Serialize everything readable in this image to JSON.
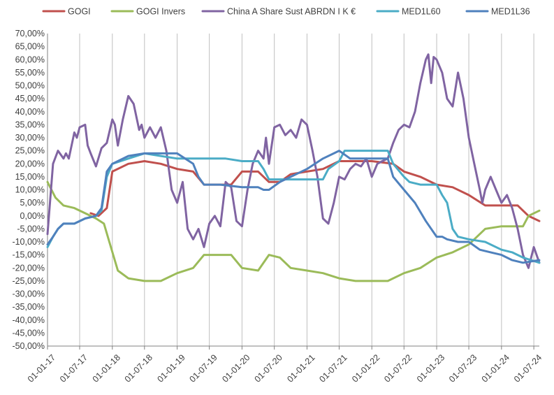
{
  "chart_data": {
    "type": "line",
    "title": "",
    "xlabel": "",
    "ylabel": "",
    "ylim": [
      -50,
      70
    ],
    "y_ticks": [
      70,
      65,
      60,
      55,
      50,
      45,
      40,
      35,
      30,
      25,
      20,
      15,
      10,
      5,
      0,
      -5,
      -10,
      -15,
      -20,
      -25,
      -30,
      -35,
      -40,
      -45,
      -50
    ],
    "y_tick_labels": [
      "70,00%",
      "65,00%",
      "60,00%",
      "55,00%",
      "50,00%",
      "45,00%",
      "40,00%",
      "35,00%",
      "30,00%",
      "25,00%",
      "20,00%",
      "15,00%",
      "10,00%",
      "5,00%",
      "0,00%",
      "-5,00%",
      "-10,00%",
      "-15,00%",
      "-20,00%",
      "-25,00%",
      "-30,00%",
      "-35,00%",
      "-40,00%",
      "-45,00%",
      "-50,00%"
    ],
    "x_range": [
      "2017-01-01",
      "2024-08-01"
    ],
    "x_tick_dates": [
      "2017-01-01",
      "2017-07-01",
      "2018-01-01",
      "2018-07-01",
      "2019-01-01",
      "2019-07-01",
      "2020-01-01",
      "2020-07-01",
      "2021-01-01",
      "2021-07-01",
      "2022-01-01",
      "2022-07-01",
      "2023-01-01",
      "2023-07-01",
      "2024-01-01",
      "2024-07-01"
    ],
    "x_tick_labels": [
      "01-01-17",
      "01-07-17",
      "01-01-18",
      "01-07-18",
      "01-01-19",
      "01-07-19",
      "01-01-20",
      "01-07-20",
      "01-01-21",
      "01-07-21",
      "01-01-22",
      "01-07-22",
      "01-01-23",
      "01-07-23",
      "01-01-24",
      "01-07-24"
    ],
    "grid": "vertical",
    "legend_position": "top",
    "series": [
      {
        "name": "GOGI",
        "color": "#C0504D",
        "points": [
          [
            "2017-09-01",
            1
          ],
          [
            "2017-10-15",
            0
          ],
          [
            "2017-12-01",
            3
          ],
          [
            "2018-01-01",
            17
          ],
          [
            "2018-04-01",
            20
          ],
          [
            "2018-07-01",
            21
          ],
          [
            "2018-10-01",
            20
          ],
          [
            "2019-01-01",
            18
          ],
          [
            "2019-04-01",
            17
          ],
          [
            "2019-06-01",
            12
          ],
          [
            "2019-08-01",
            12
          ],
          [
            "2019-11-01",
            12
          ],
          [
            "2020-01-01",
            17
          ],
          [
            "2020-04-01",
            17
          ],
          [
            "2020-06-01",
            13
          ],
          [
            "2020-08-01",
            13
          ],
          [
            "2020-10-01",
            16
          ],
          [
            "2021-01-01",
            17
          ],
          [
            "2021-04-01",
            18
          ],
          [
            "2021-07-01",
            21
          ],
          [
            "2021-10-01",
            21
          ],
          [
            "2022-01-01",
            21
          ],
          [
            "2022-05-01",
            20
          ],
          [
            "2022-07-01",
            17
          ],
          [
            "2022-10-01",
            15
          ],
          [
            "2023-01-01",
            12
          ],
          [
            "2023-04-01",
            11
          ],
          [
            "2023-07-01",
            8
          ],
          [
            "2023-10-01",
            4
          ],
          [
            "2024-01-01",
            4
          ],
          [
            "2024-04-01",
            4
          ],
          [
            "2024-06-01",
            0
          ],
          [
            "2024-08-01",
            -2
          ]
        ]
      },
      {
        "name": "GOGI Invers",
        "color": "#9BBB59",
        "points": [
          [
            "2017-01-01",
            13
          ],
          [
            "2017-02-15",
            7
          ],
          [
            "2017-04-01",
            4
          ],
          [
            "2017-06-01",
            3
          ],
          [
            "2017-08-01",
            1
          ],
          [
            "2017-10-01",
            -1
          ],
          [
            "2017-11-15",
            -3
          ],
          [
            "2017-12-15",
            -10
          ],
          [
            "2018-02-01",
            -21
          ],
          [
            "2018-04-01",
            -24
          ],
          [
            "2018-07-01",
            -25
          ],
          [
            "2018-10-01",
            -25
          ],
          [
            "2019-01-01",
            -22
          ],
          [
            "2019-04-01",
            -20
          ],
          [
            "2019-06-01",
            -15
          ],
          [
            "2019-08-01",
            -15
          ],
          [
            "2019-11-01",
            -15
          ],
          [
            "2020-01-01",
            -20
          ],
          [
            "2020-04-01",
            -21
          ],
          [
            "2020-06-01",
            -15
          ],
          [
            "2020-08-01",
            -16
          ],
          [
            "2020-10-01",
            -20
          ],
          [
            "2021-01-01",
            -21
          ],
          [
            "2021-04-01",
            -22
          ],
          [
            "2021-07-01",
            -24
          ],
          [
            "2021-10-01",
            -25
          ],
          [
            "2022-01-01",
            -25
          ],
          [
            "2022-04-01",
            -25
          ],
          [
            "2022-07-01",
            -22
          ],
          [
            "2022-10-01",
            -20
          ],
          [
            "2023-01-01",
            -16
          ],
          [
            "2023-04-01",
            -14
          ],
          [
            "2023-07-01",
            -11
          ],
          [
            "2023-10-01",
            -5
          ],
          [
            "2024-01-01",
            -4
          ],
          [
            "2024-05-01",
            -4
          ],
          [
            "2024-06-01",
            0
          ],
          [
            "2024-08-01",
            2
          ]
        ]
      },
      {
        "name": "China A Share Sust ABRDN I K €",
        "color": "#8064A2",
        "points": [
          [
            "2017-01-01",
            -7
          ],
          [
            "2017-02-01",
            20
          ],
          [
            "2017-03-01",
            25
          ],
          [
            "2017-04-01",
            22
          ],
          [
            "2017-04-15",
            24
          ],
          [
            "2017-05-01",
            22
          ],
          [
            "2017-06-01",
            32
          ],
          [
            "2017-06-15",
            30
          ],
          [
            "2017-07-01",
            34
          ],
          [
            "2017-08-01",
            35
          ],
          [
            "2017-08-15",
            27
          ],
          [
            "2017-09-01",
            24
          ],
          [
            "2017-10-01",
            19
          ],
          [
            "2017-11-01",
            26
          ],
          [
            "2017-12-01",
            28
          ],
          [
            "2018-01-01",
            37
          ],
          [
            "2018-01-15",
            35
          ],
          [
            "2018-02-01",
            27
          ],
          [
            "2018-03-01",
            37
          ],
          [
            "2018-04-01",
            46
          ],
          [
            "2018-05-01",
            43
          ],
          [
            "2018-06-01",
            33
          ],
          [
            "2018-06-15",
            35
          ],
          [
            "2018-07-01",
            30
          ],
          [
            "2018-08-01",
            34
          ],
          [
            "2018-09-01",
            30
          ],
          [
            "2018-10-01",
            34
          ],
          [
            "2018-11-01",
            25
          ],
          [
            "2018-12-01",
            10
          ],
          [
            "2019-01-01",
            5
          ],
          [
            "2019-02-01",
            13
          ],
          [
            "2019-03-01",
            -5
          ],
          [
            "2019-04-01",
            -9
          ],
          [
            "2019-05-01",
            -5
          ],
          [
            "2019-06-01",
            -12
          ],
          [
            "2019-07-01",
            -3
          ],
          [
            "2019-08-01",
            0
          ],
          [
            "2019-09-01",
            -4
          ],
          [
            "2019-10-01",
            13
          ],
          [
            "2019-11-01",
            11
          ],
          [
            "2019-12-01",
            -2
          ],
          [
            "2020-01-01",
            -4
          ],
          [
            "2020-02-01",
            10
          ],
          [
            "2020-03-01",
            20
          ],
          [
            "2020-04-01",
            25
          ],
          [
            "2020-05-01",
            22
          ],
          [
            "2020-05-15",
            30
          ],
          [
            "2020-06-01",
            20
          ],
          [
            "2020-07-01",
            34
          ],
          [
            "2020-08-01",
            35
          ],
          [
            "2020-09-01",
            31
          ],
          [
            "2020-10-01",
            33
          ],
          [
            "2020-11-01",
            30
          ],
          [
            "2020-12-01",
            37
          ],
          [
            "2021-01-01",
            35
          ],
          [
            "2021-02-01",
            25
          ],
          [
            "2021-03-01",
            15
          ],
          [
            "2021-04-01",
            -1
          ],
          [
            "2021-05-01",
            -3
          ],
          [
            "2021-06-01",
            5
          ],
          [
            "2021-07-01",
            15
          ],
          [
            "2021-08-01",
            14
          ],
          [
            "2021-09-01",
            18
          ],
          [
            "2021-10-01",
            20
          ],
          [
            "2021-11-01",
            19
          ],
          [
            "2021-12-01",
            22
          ],
          [
            "2022-01-01",
            15
          ],
          [
            "2022-02-01",
            20
          ],
          [
            "2022-03-01",
            21
          ],
          [
            "2022-04-01",
            22
          ],
          [
            "2022-05-01",
            28
          ],
          [
            "2022-06-01",
            33
          ],
          [
            "2022-07-01",
            35
          ],
          [
            "2022-08-01",
            34
          ],
          [
            "2022-09-01",
            40
          ],
          [
            "2022-10-01",
            51
          ],
          [
            "2022-10-15",
            55
          ],
          [
            "2022-11-01",
            60
          ],
          [
            "2022-11-15",
            62
          ],
          [
            "2022-12-01",
            51
          ],
          [
            "2022-12-15",
            61
          ],
          [
            "2023-01-01",
            60
          ],
          [
            "2023-02-01",
            55
          ],
          [
            "2023-03-01",
            45
          ],
          [
            "2023-04-01",
            42
          ],
          [
            "2023-05-01",
            55
          ],
          [
            "2023-06-01",
            45
          ],
          [
            "2023-07-01",
            30
          ],
          [
            "2023-08-01",
            20
          ],
          [
            "2023-09-01",
            10
          ],
          [
            "2023-09-15",
            5
          ],
          [
            "2023-10-01",
            10
          ],
          [
            "2023-11-01",
            15
          ],
          [
            "2023-12-01",
            10
          ],
          [
            "2024-01-01",
            5
          ],
          [
            "2024-02-01",
            8
          ],
          [
            "2024-03-01",
            3
          ],
          [
            "2024-04-01",
            -5
          ],
          [
            "2024-05-01",
            -15
          ],
          [
            "2024-06-01",
            -20
          ],
          [
            "2024-07-01",
            -12
          ],
          [
            "2024-08-01",
            -18
          ]
        ]
      },
      {
        "name": "MED1L60",
        "color": "#4BACC6",
        "points": [
          [
            "2017-01-01",
            -12
          ],
          [
            "2017-02-01",
            -8
          ],
          [
            "2017-03-01",
            -5
          ],
          [
            "2017-04-01",
            -3
          ],
          [
            "2017-06-01",
            -3
          ],
          [
            "2017-08-01",
            -1
          ],
          [
            "2017-10-01",
            0
          ],
          [
            "2017-11-01",
            2
          ],
          [
            "2017-12-01",
            15
          ],
          [
            "2018-01-01",
            20
          ],
          [
            "2018-04-01",
            22
          ],
          [
            "2018-07-01",
            24
          ],
          [
            "2018-10-01",
            23
          ],
          [
            "2019-01-01",
            22
          ],
          [
            "2019-04-01",
            22
          ],
          [
            "2019-07-01",
            22
          ],
          [
            "2019-10-01",
            22
          ],
          [
            "2020-01-01",
            21
          ],
          [
            "2020-04-01",
            21
          ],
          [
            "2020-05-01",
            18
          ],
          [
            "2020-06-01",
            14
          ],
          [
            "2020-08-01",
            14
          ],
          [
            "2020-10-01",
            14
          ],
          [
            "2021-01-01",
            14
          ],
          [
            "2021-04-01",
            14
          ],
          [
            "2021-05-01",
            18
          ],
          [
            "2021-07-01",
            21
          ],
          [
            "2021-08-01",
            25
          ],
          [
            "2021-10-01",
            25
          ],
          [
            "2022-01-01",
            25
          ],
          [
            "2022-04-01",
            25
          ],
          [
            "2022-05-01",
            20
          ],
          [
            "2022-07-01",
            15
          ],
          [
            "2022-08-01",
            13
          ],
          [
            "2022-10-01",
            12
          ],
          [
            "2023-01-01",
            12
          ],
          [
            "2023-02-01",
            8
          ],
          [
            "2023-03-01",
            5
          ],
          [
            "2023-04-01",
            -5
          ],
          [
            "2023-05-01",
            -8
          ],
          [
            "2023-07-01",
            -9
          ],
          [
            "2023-10-01",
            -10
          ],
          [
            "2024-01-01",
            -13
          ],
          [
            "2024-03-01",
            -14
          ],
          [
            "2024-05-01",
            -16
          ],
          [
            "2024-08-01",
            -18
          ]
        ]
      },
      {
        "name": "MED1L36",
        "color": "#4F81BD",
        "points": [
          [
            "2017-01-01",
            -11
          ],
          [
            "2017-02-01",
            -8
          ],
          [
            "2017-03-01",
            -5
          ],
          [
            "2017-04-01",
            -3
          ],
          [
            "2017-06-01",
            -3
          ],
          [
            "2017-08-01",
            -1
          ],
          [
            "2017-10-01",
            0
          ],
          [
            "2017-11-01",
            3
          ],
          [
            "2017-12-01",
            17
          ],
          [
            "2018-01-01",
            20
          ],
          [
            "2018-04-01",
            23
          ],
          [
            "2018-07-01",
            24
          ],
          [
            "2018-10-01",
            24
          ],
          [
            "2019-01-01",
            24
          ],
          [
            "2019-04-01",
            20
          ],
          [
            "2019-05-01",
            15
          ],
          [
            "2019-06-01",
            12
          ],
          [
            "2019-09-01",
            12
          ],
          [
            "2020-01-01",
            11
          ],
          [
            "2020-04-01",
            11
          ],
          [
            "2020-05-01",
            10
          ],
          [
            "2020-06-01",
            10
          ],
          [
            "2020-08-01",
            13
          ],
          [
            "2020-10-01",
            15
          ],
          [
            "2021-01-01",
            18
          ],
          [
            "2021-04-01",
            22
          ],
          [
            "2021-06-01",
            24
          ],
          [
            "2021-07-01",
            25
          ],
          [
            "2021-09-01",
            22
          ],
          [
            "2022-01-01",
            22
          ],
          [
            "2022-04-01",
            22
          ],
          [
            "2022-05-01",
            15
          ],
          [
            "2022-07-01",
            10
          ],
          [
            "2022-09-01",
            5
          ],
          [
            "2022-11-01",
            -2
          ],
          [
            "2023-01-01",
            -8
          ],
          [
            "2023-02-01",
            -8
          ],
          [
            "2023-03-01",
            -9
          ],
          [
            "2023-05-01",
            -10
          ],
          [
            "2023-07-01",
            -10
          ],
          [
            "2023-09-01",
            -13
          ],
          [
            "2023-11-01",
            -14
          ],
          [
            "2024-01-01",
            -15
          ],
          [
            "2024-03-01",
            -17
          ],
          [
            "2024-05-01",
            -18
          ],
          [
            "2024-08-01",
            -17
          ]
        ]
      }
    ]
  }
}
